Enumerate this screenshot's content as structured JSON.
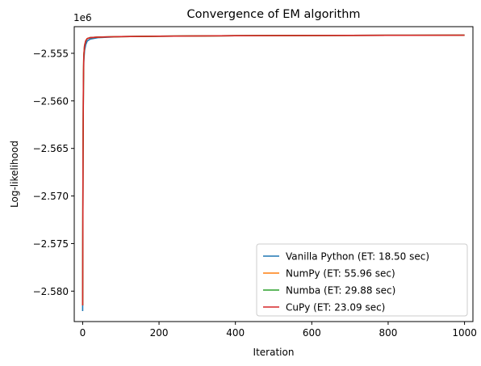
{
  "chart_data": {
    "type": "line",
    "title": "Convergence of EM algorithm",
    "xlabel": "Iteration",
    "ylabel": "Log-likelihood",
    "y_offset_label": "1e6",
    "xlim": [
      -22,
      1022
    ],
    "ylim": [
      -2583200,
      -2552200
    ],
    "x_ticks": [
      0,
      200,
      400,
      600,
      800,
      1000
    ],
    "x_tick_labels": [
      "0",
      "200",
      "400",
      "600",
      "800",
      "1000"
    ],
    "y_ticks": [
      -2580000,
      -2575000,
      -2570000,
      -2565000,
      -2560000,
      -2555000
    ],
    "y_tick_labels": [
      "−2.580",
      "−2.575",
      "−2.570",
      "−2.565",
      "−2.560",
      "−2.555"
    ],
    "grid": false,
    "legend_position": "lower-right",
    "series": [
      {
        "name": "Vanilla Python (ET: 18.50 sec)",
        "color": "#1f77b4",
        "x": [
          0,
          1,
          2,
          3,
          5,
          8,
          12,
          20,
          40,
          100,
          200,
          400,
          600,
          800,
          1000
        ],
        "values": [
          -2582100,
          -2566000,
          -2558500,
          -2555800,
          -2554700,
          -2554100,
          -2553700,
          -2553500,
          -2553350,
          -2553250,
          -2553200,
          -2553150,
          -2553130,
          -2553110,
          -2553100
        ]
      },
      {
        "name": "NumPy (ET: 55.96 sec)",
        "color": "#ff7f0e",
        "x": [
          0,
          1,
          2,
          3,
          5,
          8,
          12,
          20,
          40,
          100,
          200,
          400,
          600,
          800,
          1000
        ],
        "values": [
          -2581500,
          -2565500,
          -2558000,
          -2555300,
          -2554200,
          -2553700,
          -2553450,
          -2553350,
          -2553300,
          -2553250,
          -2553200,
          -2553150,
          -2553130,
          -2553110,
          -2553100
        ]
      },
      {
        "name": "Numba (ET: 29.88 sec)",
        "color": "#2ca02c",
        "x": [
          0,
          1,
          2,
          3,
          5,
          8,
          12,
          20,
          40,
          100,
          200,
          400,
          600,
          800,
          1000
        ],
        "values": [
          -2581500,
          -2565500,
          -2558000,
          -2555300,
          -2554200,
          -2553700,
          -2553450,
          -2553350,
          -2553300,
          -2553250,
          -2553200,
          -2553150,
          -2553130,
          -2553110,
          -2553100
        ]
      },
      {
        "name": "CuPy (ET: 23.09 sec)",
        "color": "#d62728",
        "x": [
          0,
          1,
          2,
          3,
          5,
          8,
          12,
          20,
          40,
          100,
          200,
          400,
          600,
          800,
          1000
        ],
        "values": [
          -2581500,
          -2565500,
          -2558000,
          -2555300,
          -2554200,
          -2553700,
          -2553450,
          -2553350,
          -2553300,
          -2553250,
          -2553200,
          -2553150,
          -2553130,
          -2553110,
          -2553100
        ]
      }
    ]
  }
}
